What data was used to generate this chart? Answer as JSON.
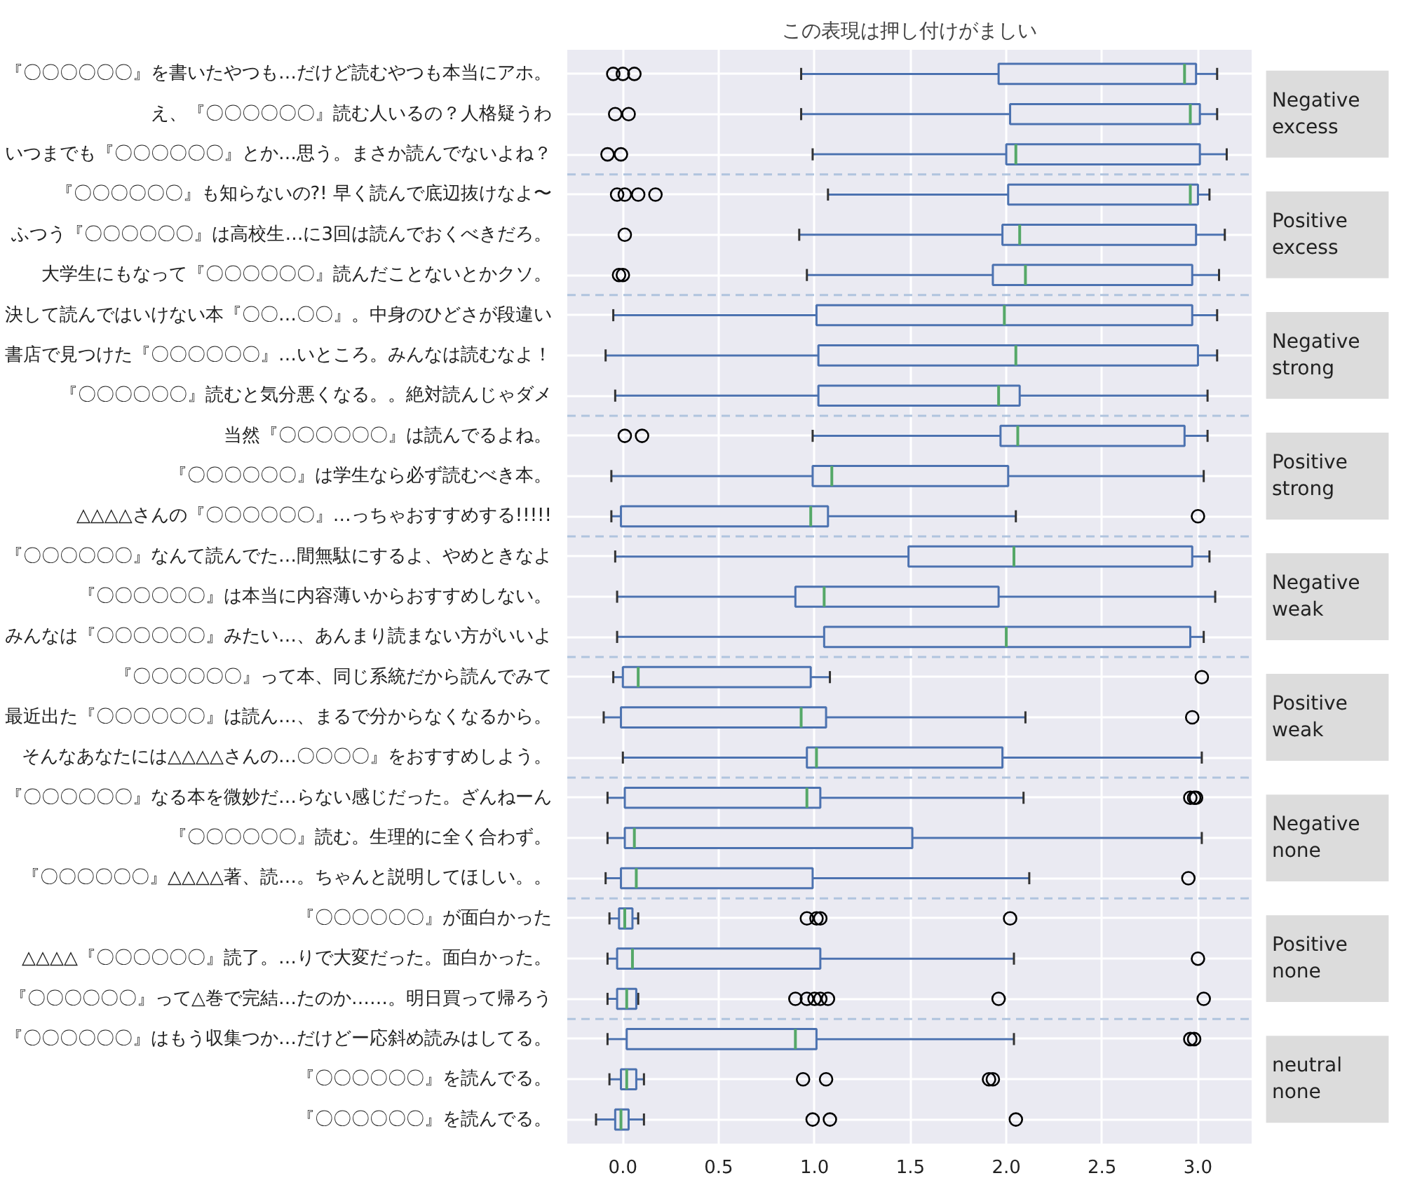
{
  "chart_data": {
    "type": "box",
    "orientation": "horizontal",
    "title": "この表現は押し付けがましい",
    "color": "#4c72b0",
    "grid": true,
    "xlim": [
      -0.29,
      3.28
    ],
    "xticks": [
      {
        "value": 0,
        "label": "0.0"
      },
      {
        "value": 0.5,
        "label": "0.5"
      },
      {
        "value": 1,
        "label": "1.0"
      },
      {
        "value": 1.5,
        "label": "1.5"
      },
      {
        "value": 2,
        "label": "2.0"
      },
      {
        "value": 2.5,
        "label": "2.5"
      },
      {
        "value": 3,
        "label": "3.0"
      }
    ],
    "categories": [
      "『〇〇〇〇〇〇』を書いたやつも…だけど読むやつも本当にアホ。",
      "え、『〇〇〇〇〇〇』読む人いるの？人格疑うわ",
      "いつまでも『〇〇〇〇〇〇』とか…思う。まさか読んでないよね？",
      "『〇〇〇〇〇〇』も知らないの?! 早く読んで底辺抜けなよ〜",
      "ふつう『〇〇〇〇〇〇』は高校生…に3回は読んでおくべきだろ。",
      "大学生にもなって『〇〇〇〇〇〇』読んだことないとかクソ。",
      "決して読んではいけない本『〇〇…〇〇』。中身のひどさが段違い",
      "書店で見つけた『〇〇〇〇〇〇』…いところ。みんなは読むなよ！",
      "『〇〇〇〇〇〇』読むと気分悪くなる。。絶対読んじゃダメ",
      "当然『〇〇〇〇〇〇』は読んでるよね。",
      "『〇〇〇〇〇〇』は学生なら必ず読むべき本。",
      "△△△△さんの『〇〇〇〇〇〇』…っちゃおすすめする!!!!!",
      "『〇〇〇〇〇〇』なんて読んでた…間無駄にするよ、やめときなよ",
      "『〇〇〇〇〇〇』は本当に内容薄いからおすすめしない。",
      "みんなは『〇〇〇〇〇〇』みたい…、あんまり読まない方がいいよ",
      "『〇〇〇〇〇〇』って本、同じ系統だから読んでみて",
      "最近出た『〇〇〇〇〇〇』は読ん…、まるで分からなくなるから。",
      "そんなあなたには△△△△さんの…〇〇〇〇』をおすすめしよう。",
      "『〇〇〇〇〇〇』なる本を微妙だ…らない感じだった。ざんねーん",
      "『〇〇〇〇〇〇』読む。生理的に全く合わず。",
      "『〇〇〇〇〇〇』△△△△著、読…。ちゃんと説明してほしい。。",
      "『〇〇〇〇〇〇』が面白かった",
      "△△△△『〇〇〇〇〇〇』読了。…りで大変だった。面白かった。",
      "『〇〇〇〇〇〇』って△巻で完結…たのか……。明日買って帰ろう",
      "『〇〇〇〇〇〇』はもう収集つか…だけどー応斜め読みはしてる。",
      "『〇〇〇〇〇〇』を読んでる。",
      "『〇〇〇〇〇〇』を読んでる。"
    ],
    "boxes": [
      {
        "low": 0.93,
        "q1": 1.96,
        "median": 2.93,
        "q3": 2.99,
        "high": 3.1,
        "outliers": [
          -0.05,
          0.0,
          0.06
        ]
      },
      {
        "low": 0.93,
        "q1": 2.02,
        "median": 2.96,
        "q3": 3.01,
        "high": 3.1,
        "outliers": [
          -0.04,
          0.03
        ]
      },
      {
        "low": 0.99,
        "q1": 2.0,
        "median": 2.05,
        "q3": 3.01,
        "high": 3.15,
        "outliers": [
          -0.08,
          -0.01
        ]
      },
      {
        "low": 1.07,
        "q1": 2.01,
        "median": 2.96,
        "q3": 3.0,
        "high": 3.06,
        "outliers": [
          -0.03,
          0.01,
          0.08,
          0.17
        ]
      },
      {
        "low": 0.92,
        "q1": 1.98,
        "median": 2.07,
        "q3": 2.99,
        "high": 3.14,
        "outliers": [
          0.01
        ]
      },
      {
        "low": 0.96,
        "q1": 1.93,
        "median": 2.1,
        "q3": 2.97,
        "high": 3.11,
        "outliers": [
          -0.02,
          0.0
        ]
      },
      {
        "low": -0.05,
        "q1": 1.01,
        "median": 1.99,
        "q3": 2.97,
        "high": 3.1
      },
      {
        "low": -0.09,
        "q1": 1.02,
        "median": 2.05,
        "q3": 3.0,
        "high": 3.1
      },
      {
        "low": -0.04,
        "q1": 1.02,
        "median": 1.96,
        "q3": 2.07,
        "high": 3.05
      },
      {
        "low": 0.99,
        "q1": 1.97,
        "median": 2.06,
        "q3": 2.93,
        "high": 3.05,
        "outliers": [
          0.01,
          0.1
        ]
      },
      {
        "low": -0.06,
        "q1": 0.99,
        "median": 1.09,
        "q3": 2.01,
        "high": 3.03
      },
      {
        "low": -0.06,
        "q1": -0.01,
        "median": 0.98,
        "q3": 1.07,
        "high": 2.05,
        "outliers": [
          3.0
        ]
      },
      {
        "low": -0.04,
        "q1": 1.49,
        "median": 2.04,
        "q3": 2.97,
        "high": 3.06
      },
      {
        "low": -0.03,
        "q1": 0.9,
        "median": 1.05,
        "q3": 1.96,
        "high": 3.09
      },
      {
        "low": -0.03,
        "q1": 1.05,
        "median": 2.0,
        "q3": 2.96,
        "high": 3.03
      },
      {
        "low": -0.05,
        "q1": 0.0,
        "median": 0.08,
        "q3": 0.98,
        "high": 1.08,
        "outliers": [
          3.02
        ]
      },
      {
        "low": -0.1,
        "q1": -0.01,
        "median": 0.93,
        "q3": 1.06,
        "high": 2.1,
        "outliers": [
          2.97
        ]
      },
      {
        "low": 0.0,
        "q1": 0.96,
        "median": 1.01,
        "q3": 1.98,
        "high": 3.02
      },
      {
        "low": -0.08,
        "q1": 0.01,
        "median": 0.96,
        "q3": 1.03,
        "high": 2.09,
        "outliers": [
          2.96,
          2.98,
          2.99
        ]
      },
      {
        "low": -0.08,
        "q1": 0.01,
        "median": 0.06,
        "q3": 1.51,
        "high": 3.02
      },
      {
        "low": -0.09,
        "q1": -0.01,
        "median": 0.07,
        "q3": 0.99,
        "high": 2.12,
        "outliers": [
          2.95
        ]
      },
      {
        "low": -0.07,
        "q1": -0.02,
        "median": 0.01,
        "q3": 0.05,
        "high": 0.08,
        "outliers": [
          0.96,
          1.01,
          1.03,
          2.02
        ]
      },
      {
        "low": -0.08,
        "q1": -0.03,
        "median": 0.05,
        "q3": 1.03,
        "high": 2.04,
        "outliers": [
          3.0
        ]
      },
      {
        "low": -0.08,
        "q1": -0.03,
        "median": 0.02,
        "q3": 0.07,
        "high": 0.08,
        "outliers": [
          0.9,
          0.96,
          1.0,
          1.03,
          1.07,
          1.96,
          3.03
        ]
      },
      {
        "low": -0.08,
        "q1": 0.02,
        "median": 0.9,
        "q3": 1.01,
        "high": 2.04,
        "outliers": [
          2.96,
          2.98
        ]
      },
      {
        "low": -0.07,
        "q1": -0.01,
        "median": 0.02,
        "q3": 0.07,
        "high": 0.11,
        "outliers": [
          0.94,
          1.06,
          1.91,
          1.93
        ]
      },
      {
        "low": -0.14,
        "q1": -0.04,
        "median": -0.01,
        "q3": 0.03,
        "high": 0.11,
        "outliers": [
          0.99,
          1.08,
          2.05
        ]
      }
    ],
    "annotations": [
      "Negative excess",
      "Positive excess",
      "Negative strong",
      "Positive strong",
      "Negative weak",
      "Positive weak",
      "Negative none",
      "Positive none",
      "neutral none"
    ]
  }
}
